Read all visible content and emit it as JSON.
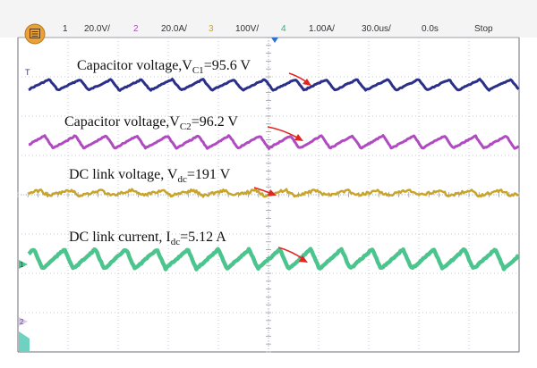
{
  "header": {
    "menu_icon": "menu-icon",
    "ch1_num": "1",
    "ch1_scale": "20.0V/",
    "ch2_num": "2",
    "ch2_scale": "20.0A/",
    "ch3_num": "3",
    "ch3_scale": "100V/",
    "ch4_num": "4",
    "ch4_scale": "1.00A/",
    "timebase": "30.0us/",
    "delay": "0.0s",
    "run_state": "Stop"
  },
  "markers": {
    "trigger": "T",
    "ch1": "1",
    "ch2": "2"
  },
  "colors": {
    "ch1": "#2a2f8a",
    "ch2": "#b04ac0",
    "ch3": "#c8a42a",
    "ch4": "#4cc48e",
    "arrow": "#e0261e",
    "grid": "#b8bcc8",
    "header_bg": "#f4f4f4",
    "header_text": "#333333"
  },
  "chart_data": {
    "type": "line",
    "title": "",
    "waveform": "sawtooth",
    "cycles_on_screen": 16,
    "grid": true,
    "series": [
      {
        "name": "Capacitor voltage,V",
        "subscript": "C1",
        "suffix": "=95.6 V",
        "value": 95.6,
        "unit": "V",
        "color": "#2a2f8a"
      },
      {
        "name": "Capacitor voltage,V",
        "subscript": "C2",
        "suffix": "=96.2 V",
        "value": 96.2,
        "unit": "V",
        "color": "#b04ac0"
      },
      {
        "name": "DC link voltage, V",
        "subscript": "dc",
        "suffix": "=191 V",
        "value": 191,
        "unit": "V",
        "color": "#c8a42a"
      },
      {
        "name": "DC link current, I",
        "subscript": "dc",
        "suffix": "=5.12 A",
        "value": 5.12,
        "unit": "A",
        "color": "#4cc48e"
      }
    ]
  }
}
